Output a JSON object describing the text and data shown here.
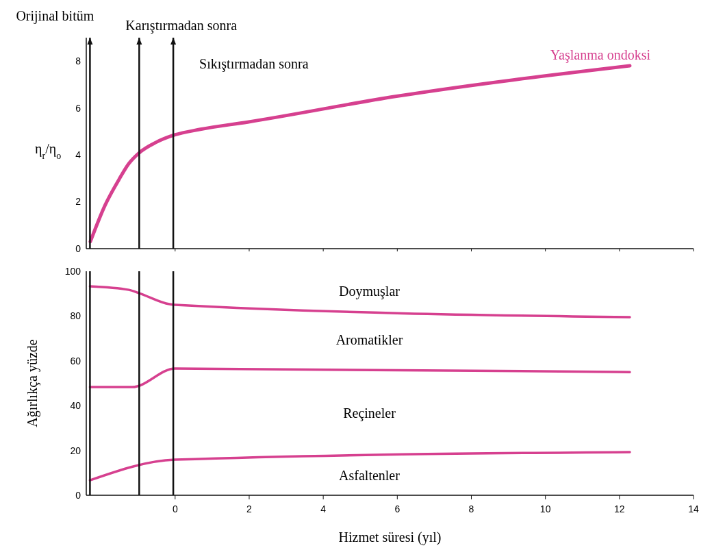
{
  "chart_data": [
    {
      "type": "line",
      "ylabel": "η$_{r}$/η$_{o}$",
      "xlim": [
        -2.4,
        14
      ],
      "ylim": [
        0,
        9
      ],
      "xticks": [
        0,
        2,
        4,
        6,
        8,
        10,
        12,
        14
      ],
      "yticks": [
        0,
        2,
        4,
        6,
        8
      ],
      "tick_labels": "y",
      "grid": false,
      "marker": "none",
      "series": [
        {
          "name": "Yaşlanma ondoksi",
          "color": "#d6408f",
          "x": [
            -2.29,
            -1.89,
            -1.52,
            -1.25,
            -0.97,
            -0.51,
            -0.06,
            0.68,
            1.96,
            5.98,
            12.28
          ],
          "values": [
            0.3,
            1.86,
            2.94,
            3.63,
            4.09,
            4.54,
            4.83,
            5.09,
            5.4,
            6.5,
            7.8
          ]
        }
      ],
      "ref_lines": [
        {
          "axis": "x",
          "value": -2.3,
          "label": "Orijinal bitüm"
        },
        {
          "axis": "x",
          "value": -0.97,
          "label": "Karıştırmadan sonra"
        },
        {
          "axis": "x",
          "value": -0.05,
          "label": "Sıkıştırmadan sonra"
        }
      ]
    },
    {
      "type": "line",
      "xlabel": "Hizmet süresi (yıl)",
      "ylabel": "Ağırlıkça yüzde",
      "xlim": [
        -2.4,
        14
      ],
      "ylim": [
        0,
        100
      ],
      "xticks": [
        0,
        2,
        4,
        6,
        8,
        10,
        12,
        14
      ],
      "yticks": [
        0,
        20,
        40,
        60,
        80,
        100
      ],
      "grid": false,
      "marker": "none",
      "series": [
        {
          "color": "#d6408f",
          "x": [
            -2.3,
            -1.25,
            -0.97,
            -0.15,
            0,
            12.28
          ],
          "values": [
            93.3,
            91.7,
            90.2,
            85.3,
            85,
            79.5
          ]
        },
        {
          "color": "#d6408f",
          "x": [
            -2.3,
            -1.16,
            0,
            12.28
          ],
          "values": [
            48.3,
            48.3,
            56.6,
            55
          ]
        },
        {
          "color": "#d6408f",
          "x": [
            -2.3,
            0,
            12.28
          ],
          "values": [
            6.7,
            15.9,
            19.3
          ]
        }
      ],
      "ref_lines": [
        {
          "axis": "x",
          "value": -2.3
        },
        {
          "axis": "x",
          "value": -0.97
        },
        {
          "axis": "x",
          "value": -0.05
        }
      ],
      "annotations": [
        "Doymuşlar",
        "Aromatikler",
        "Reçineler",
        "Asfaltenler"
      ]
    }
  ]
}
